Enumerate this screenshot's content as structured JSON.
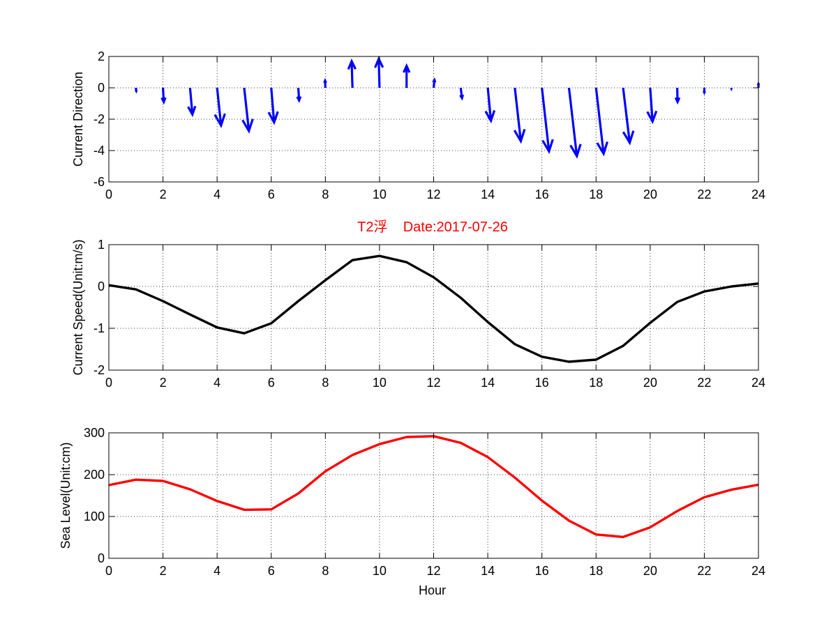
{
  "figure": {
    "title": "T2浮    Date:2017-07-26",
    "title_color": "#ff0000",
    "background": "#ffffff"
  },
  "chart_data": [
    {
      "type": "quiver",
      "ylabel": "Current Direction",
      "xlabel": "",
      "xlim": [
        0,
        24
      ],
      "ylim": [
        -6,
        2
      ],
      "xticks": [
        0,
        2,
        4,
        6,
        8,
        10,
        12,
        14,
        16,
        18,
        20,
        22,
        24
      ],
      "yticks": [
        -6,
        -4,
        -2,
        0,
        2
      ],
      "grid": true,
      "color": "#0000ff",
      "vectors": [
        {
          "x": 1,
          "u": 0.02,
          "v": -0.2
        },
        {
          "x": 2,
          "u": 0.05,
          "v": -0.9
        },
        {
          "x": 3,
          "u": 0.15,
          "v": -1.7
        },
        {
          "x": 4,
          "u": 0.25,
          "v": -2.4
        },
        {
          "x": 5,
          "u": 0.3,
          "v": -2.75
        },
        {
          "x": 6,
          "u": 0.18,
          "v": -2.2
        },
        {
          "x": 7,
          "u": 0.05,
          "v": -0.8
        },
        {
          "x": 8,
          "u": -0.02,
          "v": 0.45
        },
        {
          "x": 9,
          "u": -0.05,
          "v": 1.7
        },
        {
          "x": 10,
          "u": -0.05,
          "v": 1.85
        },
        {
          "x": 11,
          "u": 0.0,
          "v": 1.4
        },
        {
          "x": 12,
          "u": 0.05,
          "v": 0.5
        },
        {
          "x": 13,
          "u": 0.08,
          "v": -0.65
        },
        {
          "x": 14,
          "u": 0.2,
          "v": -2.1
        },
        {
          "x": 15,
          "u": 0.38,
          "v": -3.4
        },
        {
          "x": 16,
          "u": 0.45,
          "v": -4.05
        },
        {
          "x": 17,
          "u": 0.5,
          "v": -4.35
        },
        {
          "x": 18,
          "u": 0.48,
          "v": -4.2
        },
        {
          "x": 19,
          "u": 0.42,
          "v": -3.5
        },
        {
          "x": 20,
          "u": 0.15,
          "v": -2.15
        },
        {
          "x": 21,
          "u": 0.02,
          "v": -0.9
        },
        {
          "x": 22,
          "u": 0.0,
          "v": -0.3
        },
        {
          "x": 23,
          "u": 0.0,
          "v": -0.05
        },
        {
          "x": 24,
          "u": 0.0,
          "v": 0.25
        }
      ]
    },
    {
      "type": "line",
      "ylabel": "Current Speed(Unit:m/s)",
      "xlabel": "",
      "xlim": [
        0,
        24
      ],
      "ylim": [
        -2,
        1
      ],
      "xticks": [
        0,
        2,
        4,
        6,
        8,
        10,
        12,
        14,
        16,
        18,
        20,
        22,
        24
      ],
      "yticks": [
        -2,
        -1,
        0,
        1
      ],
      "grid": true,
      "series": [
        {
          "color": "#000000",
          "x": [
            0,
            1,
            2,
            3,
            4,
            5,
            6,
            7,
            8,
            9,
            10,
            11,
            12,
            13,
            14,
            15,
            16,
            17,
            18,
            19,
            20,
            21,
            22,
            23,
            24
          ],
          "values": [
            0.03,
            -0.07,
            -0.35,
            -0.67,
            -0.98,
            -1.12,
            -0.88,
            -0.35,
            0.15,
            0.63,
            0.73,
            0.58,
            0.22,
            -0.27,
            -0.85,
            -1.38,
            -1.68,
            -1.8,
            -1.75,
            -1.42,
            -0.87,
            -0.37,
            -0.12,
            0.0,
            0.07
          ]
        }
      ]
    },
    {
      "type": "line",
      "ylabel": "Sea Level(Unit:cm)",
      "xlabel": "Hour",
      "xlim": [
        0,
        24
      ],
      "ylim": [
        0,
        300
      ],
      "xticks": [
        0,
        2,
        4,
        6,
        8,
        10,
        12,
        14,
        16,
        18,
        20,
        22,
        24
      ],
      "yticks": [
        0,
        100,
        200,
        300
      ],
      "grid": true,
      "series": [
        {
          "color": "#ff0000",
          "x": [
            0,
            1,
            2,
            3,
            4,
            5,
            6,
            7,
            8,
            9,
            10,
            11,
            12,
            13,
            14,
            15,
            16,
            17,
            18,
            19,
            20,
            21,
            22,
            23,
            24
          ],
          "values": [
            175,
            188,
            185,
            165,
            137,
            116,
            117,
            155,
            208,
            247,
            273,
            290,
            292,
            276,
            242,
            193,
            138,
            90,
            57,
            51,
            74,
            113,
            146,
            164,
            176
          ]
        }
      ]
    }
  ]
}
